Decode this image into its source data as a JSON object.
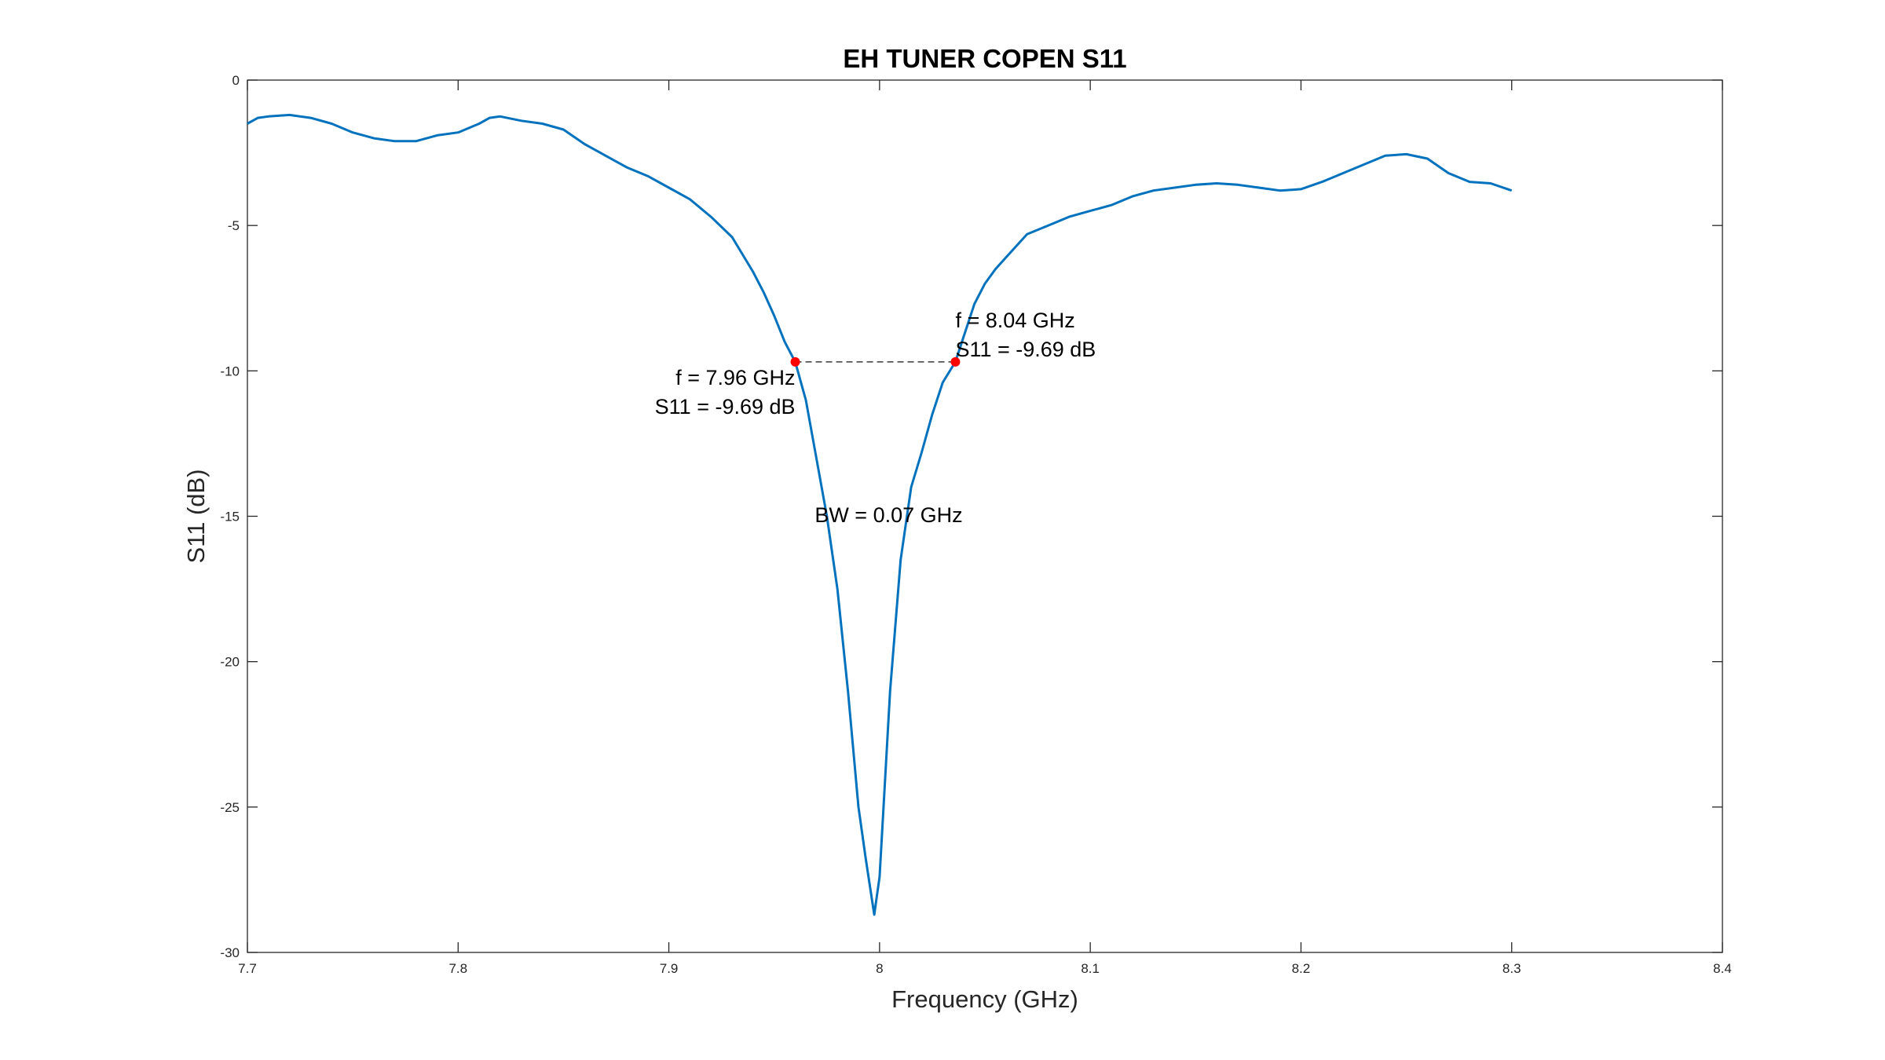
{
  "chart_data": {
    "type": "line",
    "title": "EH TUNER COPEN S11",
    "xlabel": "Frequency (GHz)",
    "ylabel": "S11 (dB)",
    "xlim": [
      7.7,
      8.4
    ],
    "ylim": [
      -30,
      0
    ],
    "x_ticks": [
      "7.7",
      "7.8",
      "7.9",
      "8",
      "8.1",
      "8.2",
      "8.3",
      "8.4"
    ],
    "y_ticks": [
      "0",
      "-5",
      "-10",
      "-15",
      "-20",
      "-25",
      "-30"
    ],
    "grid": false,
    "line_color": "#0072BD",
    "marker_color": "#FF0000",
    "series": [
      {
        "x": [
          7.7,
          7.705,
          7.71,
          7.72,
          7.73,
          7.74,
          7.75,
          7.76,
          7.77,
          7.78,
          7.79,
          7.8,
          7.81,
          7.815,
          7.82,
          7.83,
          7.84,
          7.85,
          7.86,
          7.87,
          7.88,
          7.89,
          7.9,
          7.91,
          7.92,
          7.93,
          7.94,
          7.945,
          7.95,
          7.955,
          7.96,
          7.965,
          7.97,
          7.975,
          7.98,
          7.985,
          7.99,
          7.9935,
          7.9975,
          8.0,
          8.005,
          8.01,
          8.015,
          8.02,
          8.025,
          8.03,
          8.036,
          8.04,
          8.045,
          8.05,
          8.055,
          8.06,
          8.07,
          8.08,
          8.09,
          8.1,
          8.11,
          8.12,
          8.13,
          8.14,
          8.15,
          8.16,
          8.17,
          8.18,
          8.19,
          8.2,
          8.21,
          8.22,
          8.23,
          8.24,
          8.25,
          8.26,
          8.27,
          8.28,
          8.29,
          8.3
        ],
        "y": [
          -1.5,
          -1.3,
          -1.25,
          -1.2,
          -1.3,
          -1.5,
          -1.8,
          -2.0,
          -2.1,
          -2.1,
          -1.9,
          -1.8,
          -1.5,
          -1.3,
          -1.25,
          -1.4,
          -1.5,
          -1.7,
          -2.2,
          -2.6,
          -3.0,
          -3.3,
          -3.7,
          -4.1,
          -4.7,
          -5.4,
          -6.6,
          -7.3,
          -8.1,
          -9.0,
          -9.69,
          -11.0,
          -13.0,
          -15.0,
          -17.5,
          -21.0,
          -25.0,
          -26.8,
          -28.7,
          -27.4,
          -21.0,
          -16.5,
          -14.0,
          -12.8,
          -11.5,
          -10.4,
          -9.69,
          -8.8,
          -7.7,
          -7.0,
          -6.5,
          -6.1,
          -5.3,
          -5.0,
          -4.7,
          -4.5,
          -4.3,
          -4.0,
          -3.8,
          -3.7,
          -3.6,
          -3.55,
          -3.6,
          -3.7,
          -3.8,
          -3.75,
          -3.5,
          -3.2,
          -2.9,
          -2.6,
          -2.55,
          -2.7,
          -3.2,
          -3.5,
          -3.55,
          -3.8
        ]
      }
    ],
    "markers": [
      {
        "x": 7.96,
        "y": -9.69
      },
      {
        "x": 8.036,
        "y": -9.69
      }
    ],
    "annotations": {
      "left_f": "f = 7.96 GHz",
      "left_s": "S11 = -9.69 dB",
      "right_f": "f = 8.04 GHz",
      "right_s": "S11 = -9.69 dB",
      "bw": "BW = 0.07 GHz"
    }
  }
}
